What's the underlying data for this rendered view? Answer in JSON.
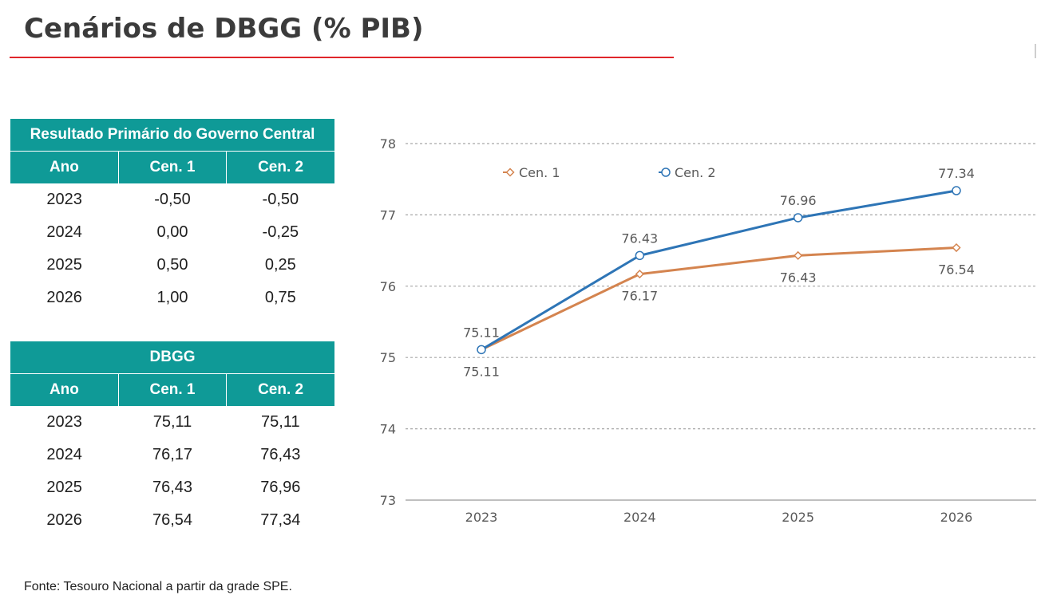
{
  "page": {
    "title": "Cenários de DBGG (% PIB)",
    "source": "Fonte: Tesouro Nacional a partir da grade SPE."
  },
  "colors": {
    "accent_rule": "#e0262b",
    "table_header": "#0f9a97",
    "cen1": "#d4844f",
    "cen2": "#2e75b6"
  },
  "table_primary": {
    "title": "Resultado Primário do Governo Central",
    "headers": [
      "Ano",
      "Cen. 1",
      "Cen. 2"
    ],
    "rows": [
      [
        "2023",
        "-0,50",
        "-0,50"
      ],
      [
        "2024",
        "0,00",
        "-0,25"
      ],
      [
        "2025",
        "0,50",
        "0,25"
      ],
      [
        "2026",
        "1,00",
        "0,75"
      ]
    ]
  },
  "table_dbgg": {
    "title": "DBGG",
    "headers": [
      "Ano",
      "Cen. 1",
      "Cen. 2"
    ],
    "rows": [
      [
        "2023",
        "75,11",
        "75,11"
      ],
      [
        "2024",
        "76,17",
        "76,43"
      ],
      [
        "2025",
        "76,43",
        "76,96"
      ],
      [
        "2026",
        "76,54",
        "77,34"
      ]
    ]
  },
  "chart_data": {
    "type": "line",
    "title": "",
    "xlabel": "",
    "ylabel": "",
    "categories": [
      "2023",
      "2024",
      "2025",
      "2026"
    ],
    "ylim": [
      73,
      78
    ],
    "yticks": [
      "73",
      "74",
      "75",
      "76",
      "77",
      "78"
    ],
    "grid": true,
    "legend": "top-left",
    "series": [
      {
        "name": "Cen. 1",
        "marker": "diamond",
        "color": "#d4844f",
        "values": [
          75.11,
          76.17,
          76.43,
          76.54
        ],
        "labels": [
          "75.11",
          "76.17",
          "76.43",
          "76.54"
        ],
        "label_position": "below"
      },
      {
        "name": "Cen. 2",
        "marker": "circle",
        "color": "#2e75b6",
        "values": [
          75.11,
          76.43,
          76.96,
          77.34
        ],
        "labels": [
          "75.11",
          "76.43",
          "76.96",
          "77.34"
        ],
        "label_position": "above"
      }
    ]
  }
}
